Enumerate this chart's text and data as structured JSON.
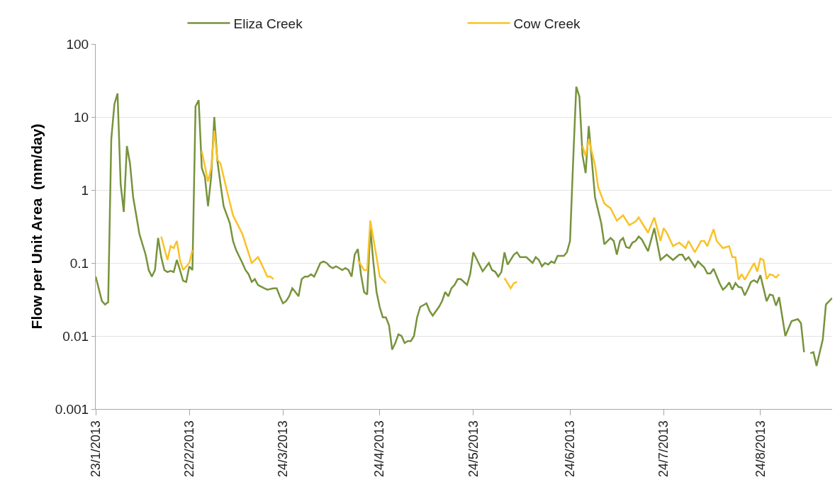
{
  "chart_data": {
    "type": "line",
    "ylabel": "Flow per Unit Area  (mm/day)",
    "log": true,
    "grid": "y",
    "legend": "top",
    "marker": "none",
    "line_style": "solid",
    "xlim": [
      "2013-01-23",
      "2013-09-16"
    ],
    "xticks": [
      {
        "value": "2013-01-23",
        "label": "23/1/2013"
      },
      {
        "value": "2013-02-22",
        "label": "22/2/2013"
      },
      {
        "value": "2013-03-24",
        "label": "24/3/2013"
      },
      {
        "value": "2013-04-24",
        "label": "24/4/2013"
      },
      {
        "value": "2013-05-24",
        "label": "24/5/2013"
      },
      {
        "value": "2013-06-24",
        "label": "24/6/2013"
      },
      {
        "value": "2013-07-24",
        "label": "24/7/2013"
      },
      {
        "value": "2013-08-24",
        "label": "24/8/2013"
      }
    ],
    "ylim": [
      0.001,
      100
    ],
    "yticks": [
      0.001,
      0.01,
      0.1,
      1,
      10,
      100
    ],
    "series": [
      {
        "name": "Eliza Creek",
        "color": "#77933c",
        "x": [
          "2013-01-23",
          "2013-01-25",
          "2013-01-26",
          "2013-01-27",
          "2013-01-28",
          "2013-01-29",
          "2013-01-30",
          "2013-01-31",
          "2013-02-01",
          "2013-02-02",
          "2013-02-03",
          "2013-02-04",
          "2013-02-05",
          "2013-02-06",
          "2013-02-08",
          "2013-02-09",
          "2013-02-10",
          "2013-02-11",
          "2013-02-12",
          "2013-02-13",
          "2013-02-14",
          "2013-02-15",
          "2013-02-16",
          "2013-02-17",
          "2013-02-18",
          "2013-02-19",
          "2013-02-20",
          "2013-02-21",
          "2013-02-22",
          "2013-02-23",
          "2013-02-24",
          "2013-02-25",
          "2013-02-26",
          "2013-02-27",
          "2013-02-28",
          "2013-03-01",
          "2013-03-02",
          "2013-03-03",
          "2013-03-04",
          "2013-03-05",
          "2013-03-07",
          "2013-03-08",
          "2013-03-09",
          "2013-03-11",
          "2013-03-12",
          "2013-03-13",
          "2013-03-14",
          "2013-03-15",
          "2013-03-16",
          "2013-03-18",
          "2013-03-19",
          "2013-03-21",
          "2013-03-22",
          "2013-03-23",
          "2013-03-24",
          "2013-03-25",
          "2013-03-26",
          "2013-03-27",
          "2013-03-28",
          "2013-03-29",
          "2013-03-30",
          "2013-03-31",
          "2013-04-01",
          "2013-04-02",
          "2013-04-03",
          "2013-04-04",
          "2013-04-05",
          "2013-04-06",
          "2013-04-07",
          "2013-04-08",
          "2013-04-09",
          "2013-04-10",
          "2013-04-11",
          "2013-04-12",
          "2013-04-13",
          "2013-04-14",
          "2013-04-15",
          "2013-04-16",
          "2013-04-17",
          "2013-04-18",
          "2013-04-19",
          "2013-04-20",
          "2013-04-21",
          "2013-04-22",
          "2013-04-23",
          "2013-04-24",
          "2013-04-25",
          "2013-04-26",
          "2013-04-27",
          "2013-04-28",
          "2013-04-29",
          "2013-04-30",
          "2013-05-01",
          "2013-05-02",
          "2013-05-03",
          "2013-05-04",
          "2013-05-05",
          "2013-05-06",
          "2013-05-07",
          "2013-05-09",
          "2013-05-10",
          "2013-05-11",
          "2013-05-13",
          "2013-05-14",
          "2013-05-15",
          "2013-05-16",
          "2013-05-17",
          "2013-05-18",
          "2013-05-19",
          "2013-05-20",
          "2013-05-21",
          "2013-05-22",
          "2013-05-23",
          "2013-05-24",
          "2013-05-27",
          "2013-05-29",
          "2013-05-30",
          "2013-05-31",
          "2013-06-01",
          "2013-06-02",
          "2013-06-03",
          "2013-06-04",
          "2013-06-06",
          "2013-06-07",
          "2013-06-08",
          "2013-06-10",
          "2013-06-12",
          "2013-06-13",
          "2013-06-14",
          "2013-06-15",
          "2013-06-16",
          "2013-06-17",
          "2013-06-18",
          "2013-06-19",
          "2013-06-20",
          "2013-06-22",
          "2013-06-23",
          "2013-06-24",
          "2013-06-25",
          "2013-06-26",
          "2013-06-27",
          "2013-06-28",
          "2013-06-29",
          "2013-06-30",
          "2013-07-01",
          "2013-07-02",
          "2013-07-04",
          "2013-07-05",
          "2013-07-07",
          "2013-07-08",
          "2013-07-09",
          "2013-07-10",
          "2013-07-11",
          "2013-07-12",
          "2013-07-13",
          "2013-07-14",
          "2013-07-15",
          "2013-07-16",
          "2013-07-17",
          "2013-07-19",
          "2013-07-21",
          "2013-07-23",
          "2013-07-25",
          "2013-07-27",
          "2013-07-29",
          "2013-07-30",
          "2013-07-31",
          "2013-08-01",
          "2013-08-03",
          "2013-08-04",
          "2013-08-06",
          "2013-08-07",
          "2013-08-08",
          "2013-08-09",
          "2013-08-11",
          "2013-08-12",
          "2013-08-13",
          "2013-08-14",
          "2013-08-15",
          "2013-08-16",
          "2013-08-17",
          "2013-08-18",
          "2013-08-19",
          "2013-08-20",
          "2013-08-21",
          "2013-08-22",
          "2013-08-23",
          "2013-08-24",
          "2013-08-26",
          "2013-08-27",
          "2013-08-28",
          "2013-08-29",
          "2013-08-30",
          "2013-09-01",
          "2013-09-03",
          "2013-09-05",
          "2013-09-06",
          "2013-09-07",
          "2013-09-08",
          "2013-09-09",
          "2013-09-10",
          "2013-09-11",
          "2013-09-13",
          "2013-09-14",
          "2013-09-16"
        ],
        "values": [
          0.065,
          0.03,
          0.027,
          0.029,
          5,
          15,
          21,
          1.2,
          0.5,
          4,
          2.3,
          0.8,
          0.45,
          0.25,
          0.13,
          0.08,
          0.065,
          0.08,
          0.22,
          0.12,
          0.08,
          0.075,
          0.078,
          0.075,
          0.11,
          0.08,
          0.057,
          0.055,
          0.09,
          0.08,
          14,
          17,
          2,
          1.5,
          0.6,
          1.5,
          10,
          2.5,
          1.2,
          0.6,
          0.35,
          0.2,
          0.15,
          0.1,
          0.08,
          0.07,
          0.055,
          0.06,
          0.05,
          0.045,
          0.043,
          0.045,
          0.045,
          0.035,
          0.028,
          0.03,
          0.035,
          0.045,
          0.04,
          0.035,
          0.06,
          0.065,
          0.065,
          0.07,
          0.065,
          0.08,
          0.1,
          0.105,
          0.1,
          0.09,
          0.085,
          0.09,
          0.085,
          0.08,
          0.085,
          0.08,
          0.065,
          0.13,
          0.155,
          0.07,
          0.04,
          0.037,
          0.3,
          0.1,
          0.04,
          0.025,
          0.018,
          0.018,
          0.014,
          0.0065,
          0.008,
          0.0105,
          0.01,
          0.008,
          0.0085,
          0.0085,
          0.01,
          0.018,
          0.025,
          0.028,
          0.022,
          0.019,
          0.025,
          0.03,
          0.04,
          0.035,
          0.045,
          0.05,
          0.06,
          0.06,
          0.055,
          0.05,
          0.07,
          0.14,
          0.077,
          0.1,
          0.08,
          0.076,
          0.065,
          0.075,
          0.14,
          0.095,
          0.13,
          0.14,
          0.12,
          0.12,
          0.1,
          0.12,
          0.11,
          0.09,
          0.1,
          0.095,
          0.105,
          0.1,
          0.125,
          0.125,
          0.14,
          0.2,
          2.5,
          26,
          19,
          3,
          1.7,
          7.5,
          2.5,
          0.8,
          0.35,
          0.18,
          0.22,
          0.2,
          0.13,
          0.2,
          0.22,
          0.165,
          0.16,
          0.19,
          0.2,
          0.23,
          0.21,
          0.145,
          0.3,
          0.11,
          0.13,
          0.11,
          0.13,
          0.13,
          0.11,
          0.12,
          0.088,
          0.105,
          0.087,
          0.072,
          0.072,
          0.083,
          0.052,
          0.043,
          0.047,
          0.054,
          0.043,
          0.053,
          0.047,
          0.046,
          0.036,
          0.044,
          0.055,
          0.058,
          0.054,
          0.068,
          0.03,
          0.037,
          0.036,
          0.026,
          0.034,
          0.01,
          0.016,
          0.017,
          0.015,
          0.006,
          null,
          0.0058,
          0.006,
          0.0039,
          0.009,
          0.027,
          0.033
        ]
      },
      {
        "name": "Cow Creek",
        "color": "#f9c226",
        "x": [
          "2013-02-13",
          "2013-02-15",
          "2013-02-16",
          "2013-02-17",
          "2013-02-18",
          "2013-02-19",
          "2013-02-20",
          "2013-02-22",
          "2013-02-23",
          "2013-02-24",
          "2013-02-26",
          "2013-02-28",
          "2013-03-01",
          "2013-03-02",
          "2013-03-03",
          "2013-03-04",
          "2013-03-06",
          "2013-03-08",
          "2013-03-11",
          "2013-03-14",
          "2013-03-16",
          "2013-03-17",
          "2013-03-19",
          "2013-03-20",
          "2013-03-21",
          "2013-03-22",
          "2013-04-17",
          "2013-04-19",
          "2013-04-20",
          "2013-04-21",
          "2013-04-23",
          "2013-04-24",
          "2013-04-26",
          "2013-04-27",
          "2013-06-03",
          "2013-06-05",
          "2013-06-06",
          "2013-06-07",
          "2013-06-08",
          "2013-06-28",
          "2013-06-29",
          "2013-06-30",
          "2013-07-02",
          "2013-07-03",
          "2013-07-05",
          "2013-07-07",
          "2013-07-09",
          "2013-07-11",
          "2013-07-13",
          "2013-07-15",
          "2013-07-16",
          "2013-07-19",
          "2013-07-21",
          "2013-07-23",
          "2013-07-24",
          "2013-07-25",
          "2013-07-27",
          "2013-07-28",
          "2013-07-29",
          "2013-07-31",
          "2013-08-01",
          "2013-08-03",
          "2013-08-05",
          "2013-08-06",
          "2013-08-07",
          "2013-08-09",
          "2013-08-10",
          "2013-08-12",
          "2013-08-14",
          "2013-08-15",
          "2013-08-16",
          "2013-08-17",
          "2013-08-18",
          "2013-08-19",
          "2013-08-22",
          "2013-08-23",
          "2013-08-24",
          "2013-08-25",
          "2013-08-26",
          "2013-08-27",
          "2013-08-28",
          "2013-08-29",
          "2013-08-30"
        ],
        "values": [
          0.23,
          0.11,
          0.17,
          0.16,
          0.2,
          0.11,
          0.08,
          0.1,
          0.15,
          null,
          3.4,
          1.3,
          2,
          6.5,
          2.6,
          2.3,
          1.0,
          0.45,
          0.25,
          0.1,
          0.12,
          0.1,
          0.065,
          0.065,
          0.06,
          null,
          0.11,
          0.08,
          0.08,
          0.38,
          0.12,
          0.065,
          0.053,
          null,
          0.062,
          0.045,
          0.053,
          0.055,
          null,
          4,
          2.9,
          5,
          2.2,
          1.1,
          0.65,
          0.56,
          0.38,
          0.45,
          0.33,
          0.37,
          0.42,
          0.26,
          0.42,
          0.2,
          0.3,
          0.26,
          0.17,
          0.18,
          0.19,
          0.16,
          0.2,
          0.14,
          0.2,
          0.2,
          0.17,
          0.29,
          0.2,
          0.16,
          0.17,
          0.12,
          0.12,
          0.059,
          0.07,
          0.059,
          0.1,
          0.076,
          0.115,
          0.11,
          0.06,
          0.07,
          0.068,
          0.063,
          0.07
        ]
      }
    ]
  }
}
